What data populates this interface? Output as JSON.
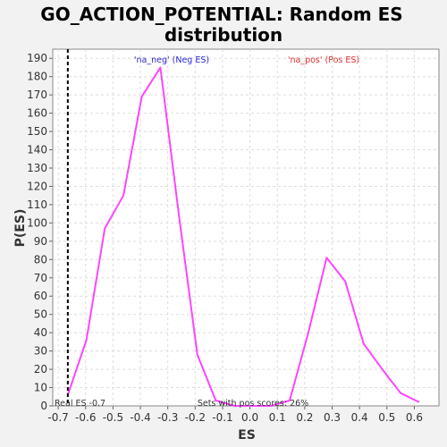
{
  "chart_data": {
    "type": "line",
    "title_line1": "GO_ACTION_POTENTIAL: Random ES",
    "title_line2": "distribution",
    "xlabel": "ES",
    "ylabel": "P(ES)",
    "xlim": [
      -0.72,
      0.69
    ],
    "ylim": [
      0,
      195
    ],
    "x_ticks": [
      -0.7,
      -0.6,
      -0.5,
      -0.4,
      -0.3,
      -0.2,
      -0.1,
      0.0,
      0.1,
      0.2,
      0.3,
      0.4,
      0.5,
      0.6
    ],
    "x_tick_labels": [
      "-0.7",
      "-0.6",
      "-0.5",
      "-0.4",
      "-0.3",
      "-0.2",
      "-0.1",
      "0.0",
      "0.1",
      "0.2",
      "0.3",
      "0.4",
      "0.5",
      "0.6"
    ],
    "y_ticks": [
      0,
      10,
      20,
      30,
      40,
      50,
      60,
      70,
      80,
      90,
      100,
      110,
      120,
      130,
      140,
      150,
      160,
      170,
      180,
      190
    ],
    "y_tick_labels": [
      "0",
      "10",
      "20",
      "30",
      "40",
      "50",
      "60",
      "70",
      "80",
      "90",
      "100",
      "110",
      "120",
      "130",
      "140",
      "150",
      "160",
      "170",
      "180",
      "190"
    ],
    "grid": true,
    "line_color": "#ff44ff",
    "series": [
      {
        "x": [
          -0.665,
          -0.597,
          -0.53,
          -0.462,
          -0.395,
          -0.327,
          -0.26,
          -0.192,
          -0.125,
          -0.057,
          0.01,
          0.078,
          0.145,
          0.213,
          0.28,
          0.348,
          0.415,
          0.483,
          0.55,
          0.618
        ],
        "y": [
          6,
          36,
          97,
          115,
          169,
          185,
          105,
          28,
          3,
          0,
          0,
          0,
          3,
          40,
          81,
          68,
          34,
          20,
          7,
          2
        ]
      }
    ],
    "real_es": -0.665,
    "real_es_line_color": "#000000",
    "annotations": {
      "neg_label": "'na_neg' (Neg ES)",
      "neg_color": "#2a2ad0",
      "pos_label": "'na_pos' (Pos ES)",
      "pos_color": "#e03030",
      "real_es_label": "Real ES -0.7",
      "pos_scores_label": "Sets with pos scores: 26%"
    }
  }
}
